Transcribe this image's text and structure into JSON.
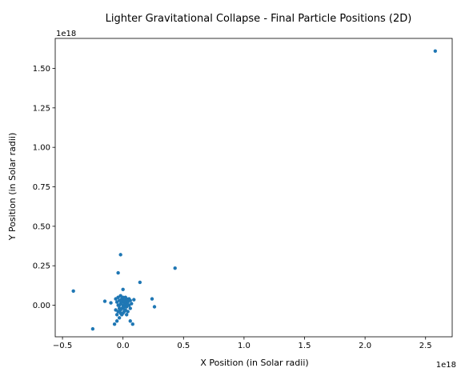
{
  "chart_data": {
    "type": "scatter",
    "title": "Lighter Gravitational Collapse - Final Particle Positions (2D)",
    "xlabel": "X Position (in Solar radii)",
    "ylabel": "Y Position (in Solar radii)",
    "x_offset_label": "1e18",
    "y_offset_label": "1e18",
    "xlim": [
      -0.56,
      2.72
    ],
    "ylim": [
      -0.2,
      1.69
    ],
    "x_ticks": [
      -0.5,
      0.0,
      0.5,
      1.0,
      1.5,
      2.0,
      2.5
    ],
    "x_tick_labels": [
      "−0.5",
      "0.0",
      "0.5",
      "1.0",
      "1.5",
      "2.0",
      "2.5"
    ],
    "y_ticks": [
      0.0,
      0.25,
      0.5,
      0.75,
      1.0,
      1.25,
      1.5
    ],
    "y_tick_labels": [
      "0.00",
      "0.25",
      "0.50",
      "0.75",
      "1.00",
      "1.25",
      "1.50"
    ],
    "grid": false,
    "marker_color": "#1f77b4",
    "points": [
      {
        "x": 2.58,
        "y": 1.61
      },
      {
        "x": -0.41,
        "y": 0.09
      },
      {
        "x": -0.25,
        "y": -0.15
      },
      {
        "x": 0.43,
        "y": 0.235
      },
      {
        "x": -0.02,
        "y": 0.32
      },
      {
        "x": -0.04,
        "y": 0.205
      },
      {
        "x": 0.14,
        "y": 0.145
      },
      {
        "x": 0.24,
        "y": 0.04
      },
      {
        "x": 0.26,
        "y": -0.01
      },
      {
        "x": -0.15,
        "y": 0.025
      },
      {
        "x": -0.1,
        "y": 0.015
      },
      {
        "x": 0.0,
        "y": 0.1
      },
      {
        "x": 0.08,
        "y": -0.12
      },
      {
        "x": -0.07,
        "y": -0.12
      },
      {
        "x": 0.09,
        "y": 0.035
      },
      {
        "x": 0.06,
        "y": -0.1
      },
      {
        "x": -0.05,
        "y": -0.1
      },
      {
        "x": -0.03,
        "y": -0.08
      },
      {
        "x": 0.0,
        "y": 0.0
      },
      {
        "x": 0.01,
        "y": 0.02
      },
      {
        "x": -0.01,
        "y": -0.02
      },
      {
        "x": 0.02,
        "y": 0.01
      },
      {
        "x": -0.02,
        "y": 0.01
      },
      {
        "x": 0.03,
        "y": -0.01
      },
      {
        "x": -0.03,
        "y": -0.02
      },
      {
        "x": 0.04,
        "y": 0.02
      },
      {
        "x": -0.04,
        "y": 0.0
      },
      {
        "x": 0.01,
        "y": -0.04
      },
      {
        "x": -0.01,
        "y": 0.04
      },
      {
        "x": 0.02,
        "y": 0.05
      },
      {
        "x": -0.02,
        "y": -0.05
      },
      {
        "x": 0.05,
        "y": 0.0
      },
      {
        "x": -0.05,
        "y": 0.02
      },
      {
        "x": 0.03,
        "y": 0.03
      },
      {
        "x": -0.03,
        "y": 0.03
      },
      {
        "x": 0.04,
        "y": -0.04
      },
      {
        "x": -0.04,
        "y": -0.04
      },
      {
        "x": 0.0,
        "y": 0.05
      },
      {
        "x": 0.0,
        "y": -0.05
      },
      {
        "x": 0.06,
        "y": -0.02
      },
      {
        "x": -0.06,
        "y": -0.03
      },
      {
        "x": 0.02,
        "y": -0.03
      },
      {
        "x": -0.01,
        "y": 0.02
      },
      {
        "x": 0.01,
        "y": 0.03
      },
      {
        "x": 0.05,
        "y": 0.04
      },
      {
        "x": -0.05,
        "y": -0.06
      },
      {
        "x": 0.03,
        "y": -0.06
      },
      {
        "x": -0.02,
        "y": 0.06
      },
      {
        "x": 0.07,
        "y": 0.01
      },
      {
        "x": -0.06,
        "y": 0.04
      },
      {
        "x": 0.0,
        "y": -0.02
      },
      {
        "x": 0.02,
        "y": 0.0
      },
      {
        "x": -0.03,
        "y": 0.0
      },
      {
        "x": 0.04,
        "y": 0.0
      },
      {
        "x": 0.01,
        "y": -0.01
      },
      {
        "x": -0.01,
        "y": -0.06
      },
      {
        "x": 0.06,
        "y": 0.03
      },
      {
        "x": -0.04,
        "y": 0.05
      },
      {
        "x": 0.03,
        "y": 0.04
      },
      {
        "x": -0.02,
        "y": -0.03
      }
    ]
  }
}
